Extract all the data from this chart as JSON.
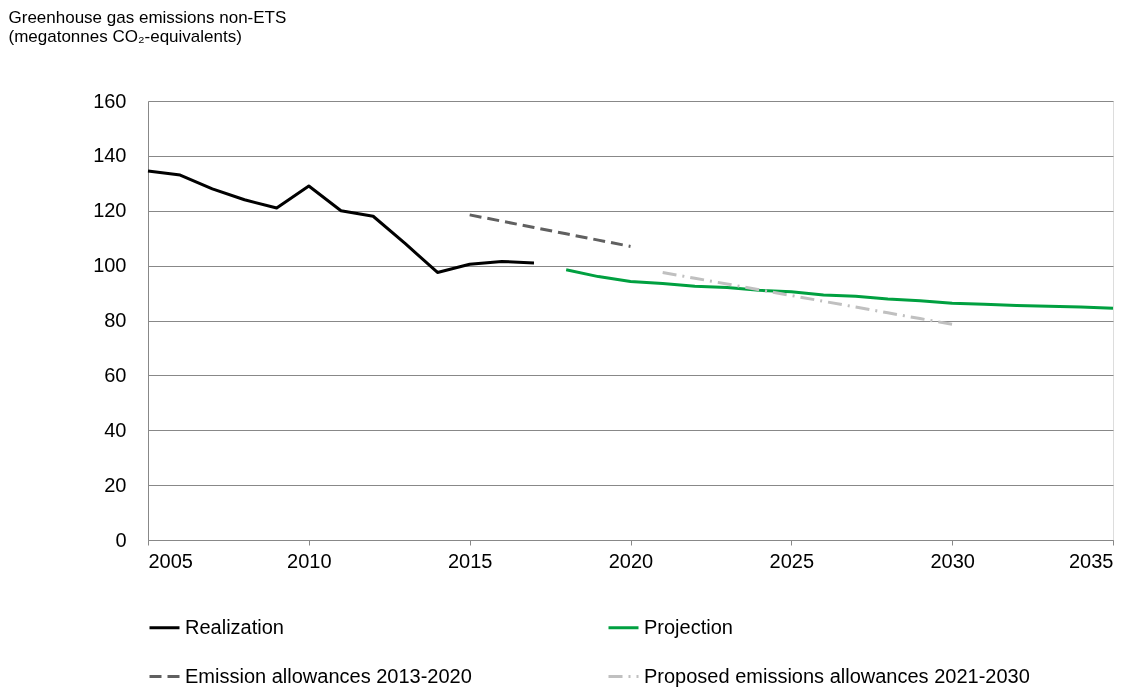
{
  "chart_data": {
    "type": "line",
    "ylabel": "Greenhouse gas emissions non-ETS\n(megatonnes CO₂-equivalents)",
    "xlim": [
      2005,
      2035
    ],
    "xticks": [
      2005,
      2010,
      2015,
      2020,
      2025,
      2030,
      2035
    ],
    "ylim": [
      0,
      160
    ],
    "yticks": [
      0,
      20,
      40,
      60,
      80,
      100,
      120,
      140,
      160
    ],
    "grid": "y",
    "legend": "bottom",
    "marker": "none",
    "series": [
      {
        "name": "Realization",
        "color": "#000000",
        "line_style": "solid",
        "x": [
          2005,
          2006,
          2007,
          2008,
          2009,
          2010,
          2011,
          2012,
          2013,
          2014,
          2015,
          2016,
          2017
        ],
        "values": [
          134.5,
          133,
          128,
          124,
          121,
          129,
          120,
          118,
          108,
          97.5,
          100.5,
          101.5,
          101
        ]
      },
      {
        "name": "Projection",
        "color": "#00a040",
        "line_style": "solid",
        "x": [
          2018,
          2019,
          2020,
          2021,
          2022,
          2023,
          2024,
          2025,
          2026,
          2027,
          2028,
          2029,
          2030,
          2031,
          2032,
          2033,
          2034,
          2035
        ],
        "values": [
          98.5,
          96,
          94.2,
          93.5,
          92.5,
          92,
          91,
          90.5,
          89.3,
          88.8,
          87.8,
          87.2,
          86.3,
          85.9,
          85.5,
          85.2,
          84.9,
          84.5
        ]
      },
      {
        "name": "Emission allowances 2013-2020",
        "color": "#606060",
        "line_style": "dashed",
        "x": [
          2015,
          2016,
          2017,
          2018,
          2019,
          2020
        ],
        "values": [
          118.5,
          116.2,
          113.9,
          111.6,
          109.3,
          107
        ]
      },
      {
        "name": "Proposed emissions allowances 2021-2030",
        "color": "#c0c0c0",
        "line_style": "dashdot",
        "x": [
          2021,
          2022,
          2023,
          2024,
          2025,
          2026,
          2027,
          2028,
          2029,
          2030
        ],
        "values": [
          97.5,
          95.4,
          93.3,
          91.2,
          89.1,
          87,
          84.9,
          82.8,
          80.7,
          78.6
        ]
      }
    ]
  }
}
